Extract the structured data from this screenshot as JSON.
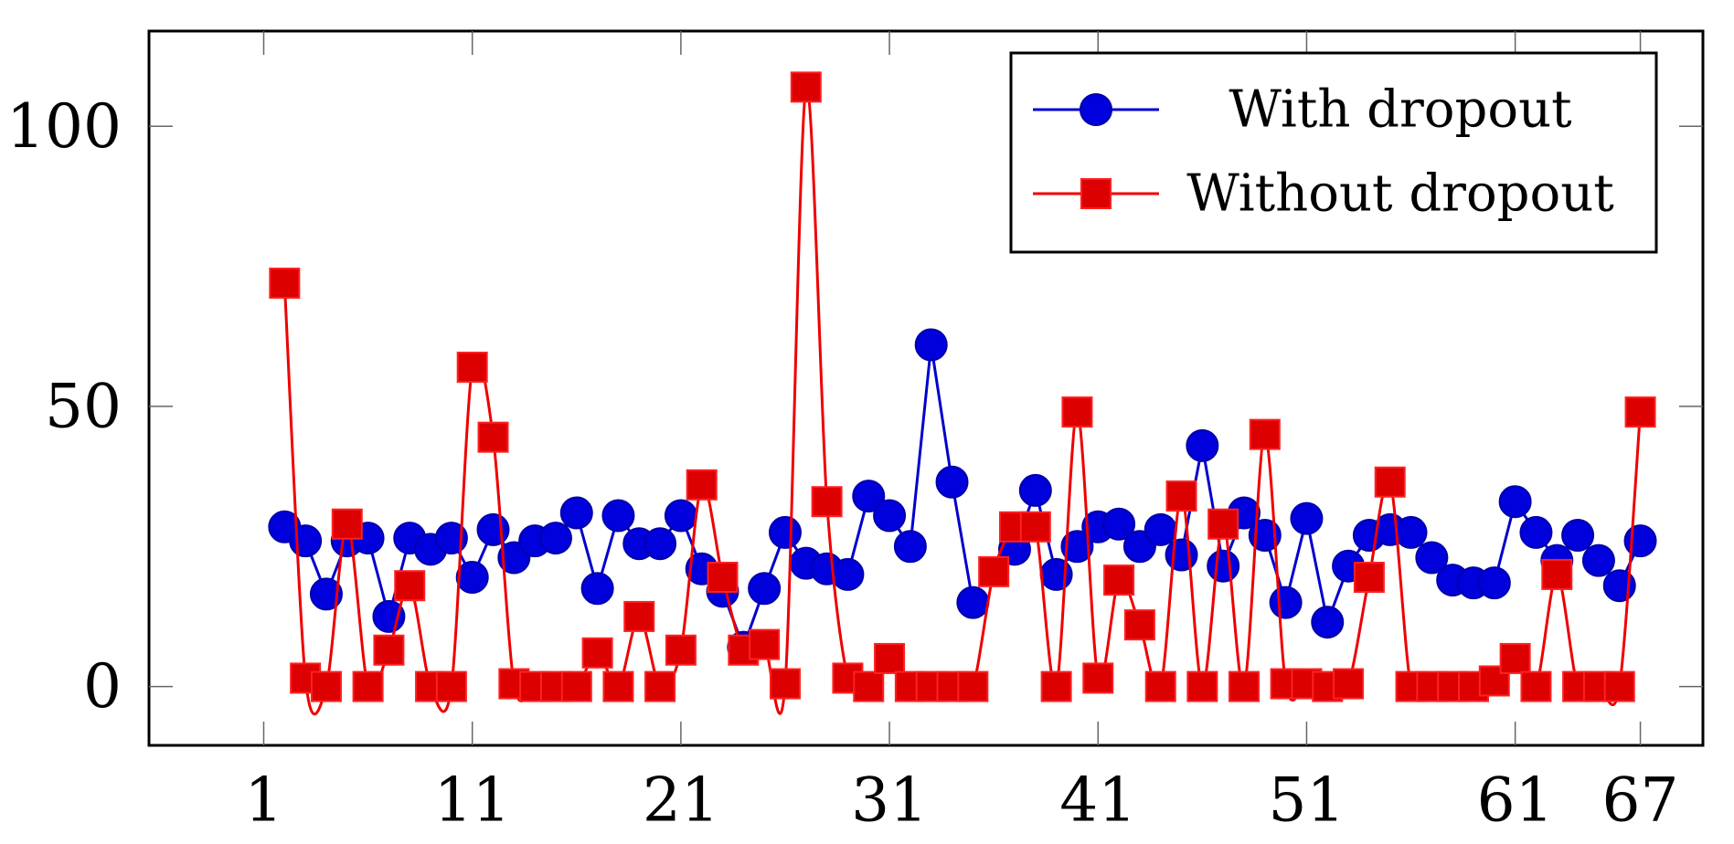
{
  "chart_data": {
    "type": "line",
    "title": "",
    "xlabel": "",
    "ylabel": "",
    "xlim": [
      -4.5,
      70
    ],
    "ylim": [
      -10.5,
      117
    ],
    "x_ticks": [
      1,
      11,
      21,
      31,
      41,
      51,
      61,
      67
    ],
    "y_ticks": [
      0,
      50,
      100
    ],
    "grid": false,
    "legend_position": "top-right",
    "series": [
      {
        "name": "With dropout",
        "color": "#0000cc",
        "marker": "circle",
        "smooth": false,
        "x": [
          2,
          3,
          4,
          5,
          6,
          7,
          8,
          9,
          10,
          11,
          12,
          13,
          14,
          15,
          16,
          17,
          18,
          19,
          20,
          21,
          22,
          23,
          24,
          25,
          26,
          27,
          28,
          29,
          30,
          31,
          32,
          33,
          34,
          35,
          36,
          37,
          38,
          39,
          40,
          41,
          42,
          43,
          44,
          45,
          46,
          47,
          48,
          49,
          50,
          51,
          52,
          53,
          54,
          55,
          56,
          57,
          58,
          59,
          60,
          61,
          62,
          63,
          64,
          65,
          66,
          67
        ],
        "values": [
          28.5,
          26,
          16.5,
          26,
          26.5,
          12.5,
          26.5,
          24.5,
          26.5,
          19.5,
          28,
          23,
          26,
          26.5,
          31,
          17.5,
          30.5,
          25.5,
          25.5,
          30.5,
          21,
          17,
          7,
          17.5,
          27.5,
          22,
          21,
          20,
          34,
          30.5,
          25,
          61,
          36.5,
          15,
          null,
          24.5,
          35,
          20,
          25,
          28.5,
          29,
          25,
          28,
          23.5,
          43,
          21.5,
          31,
          27,
          15,
          30,
          11.5,
          21.5,
          27,
          28,
          27.5,
          23,
          19,
          18.5,
          18.5,
          33,
          27.5,
          22.5,
          27,
          22.5,
          18,
          26
        ]
      },
      {
        "name": "Without dropout",
        "color": "#ee0000",
        "marker": "square",
        "smooth": true,
        "x": [
          2,
          3,
          4,
          5,
          6,
          7,
          8,
          9,
          10,
          11,
          12,
          13,
          14,
          15,
          16,
          17,
          18,
          19,
          20,
          21,
          22,
          23,
          24,
          25,
          26,
          27,
          28,
          29,
          30,
          31,
          32,
          33,
          34,
          35,
          36,
          37,
          38,
          39,
          40,
          41,
          42,
          43,
          44,
          45,
          46,
          47,
          48,
          49,
          50,
          51,
          52,
          53,
          54,
          55,
          56,
          57,
          58,
          59,
          60,
          61,
          62,
          63,
          64,
          65,
          66,
          67
        ],
        "values": [
          72,
          1.5,
          0,
          29,
          0,
          6.5,
          18,
          0,
          0,
          57,
          44.5,
          0.5,
          0,
          0,
          0,
          6,
          0,
          12.5,
          0,
          6.5,
          36,
          19.5,
          6.5,
          7.5,
          0.5,
          107,
          33,
          1.5,
          0,
          5,
          0,
          0,
          0,
          0,
          20.5,
          28.5,
          28.5,
          0,
          49,
          1.5,
          19,
          11,
          0,
          34,
          0,
          29,
          0,
          45,
          0.5,
          0.5,
          0,
          0.5,
          19.5,
          36.5,
          0,
          0,
          0,
          0,
          1,
          5,
          0,
          20,
          0,
          0,
          0,
          49
        ]
      }
    ]
  }
}
